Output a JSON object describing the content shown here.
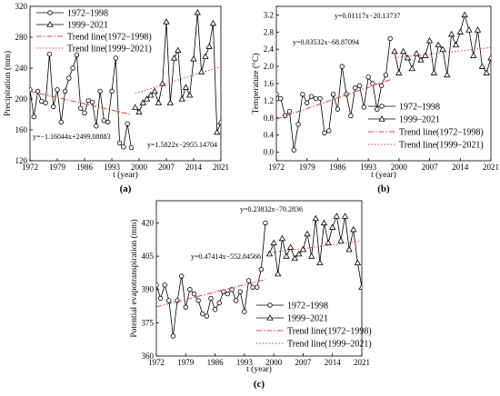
{
  "chart_data": [
    {
      "type": "line",
      "panel_label": "(a)",
      "xlabel": "t (year)",
      "ylabel": "Precipitation (mm)",
      "xlim": [
        1972,
        2021
      ],
      "ylim": [
        120,
        320
      ],
      "xticks": [
        1972,
        1979,
        1986,
        1993,
        2000,
        2007,
        2014,
        2021
      ],
      "yticks": [
        120,
        160,
        200,
        240,
        280,
        320
      ],
      "legend_position": "top-left",
      "series": [
        {
          "name": "1972–1998",
          "marker": "circle",
          "x": [
            1972,
            1973,
            1974,
            1975,
            1976,
            1977,
            1978,
            1979,
            1980,
            1981,
            1982,
            1983,
            1984,
            1985,
            1986,
            1987,
            1988,
            1989,
            1990,
            1991,
            1992,
            1993,
            1994,
            1995,
            1996,
            1997,
            1998
          ],
          "values": [
            212,
            177,
            210,
            197,
            195,
            258,
            190,
            212,
            170,
            210,
            227,
            240,
            257,
            188,
            182,
            198,
            196,
            165,
            210,
            172,
            170,
            210,
            253,
            143,
            138,
            168,
            137
          ]
        },
        {
          "name": "1999–2021",
          "marker": "triangle",
          "x": [
            1999,
            2000,
            2001,
            2002,
            2003,
            2004,
            2005,
            2006,
            2007,
            2008,
            2009,
            2010,
            2011,
            2012,
            2013,
            2014,
            2015,
            2016,
            2017,
            2018,
            2019,
            2020,
            2021
          ],
          "values": [
            189,
            183,
            195,
            200,
            205,
            210,
            195,
            220,
            300,
            195,
            253,
            263,
            200,
            215,
            205,
            252,
            312,
            235,
            255,
            268,
            298,
            157,
            170
          ]
        },
        {
          "name": "Trend line(1972–1998)",
          "style": "dash-dot",
          "color": "#e0403a",
          "x": [
            1972,
            1998
          ],
          "values": [
            210.0,
            179.8
          ]
        },
        {
          "name": "Trend line(1999–2021)",
          "style": "dotted",
          "color": "#e0403a",
          "x": [
            1999,
            2021
          ],
          "values": [
            207.2,
            242.0
          ]
        }
      ],
      "annotations": [
        "y=−1.16044x+2499.08883",
        "y=1.5822x−2955.14704"
      ]
    },
    {
      "type": "line",
      "panel_label": "(b)",
      "xlabel": "t (year)",
      "ylabel": "Temperature (°C)",
      "xlim": [
        1972,
        2021
      ],
      "ylim": [
        -0.2,
        3.4
      ],
      "xticks": [
        1972,
        1979,
        1986,
        1993,
        2000,
        2007,
        2014,
        2021
      ],
      "yticks": [
        0.0,
        0.4,
        0.8,
        1.2,
        1.6,
        2.0,
        2.4,
        2.8,
        3.2
      ],
      "legend_position": "center-right",
      "series": [
        {
          "name": "1972–1998",
          "marker": "circle",
          "x": [
            1972,
            1973,
            1974,
            1975,
            1976,
            1977,
            1978,
            1979,
            1980,
            1981,
            1982,
            1983,
            1984,
            1985,
            1986,
            1987,
            1988,
            1989,
            1990,
            1991,
            1992,
            1993,
            1994,
            1995,
            1996,
            1997,
            1998
          ],
          "values": [
            1.35,
            1.25,
            0.85,
            0.95,
            0.05,
            0.65,
            1.35,
            1.15,
            1.3,
            1.25,
            1.25,
            0.45,
            0.5,
            1.35,
            1.0,
            2.0,
            1.35,
            0.85,
            1.5,
            1.55,
            1.05,
            1.75,
            1.6,
            1.0,
            1.55,
            1.8,
            2.65
          ]
        },
        {
          "name": "1999–2021",
          "marker": "triangle",
          "x": [
            1999,
            2000,
            2001,
            2002,
            2003,
            2004,
            2005,
            2006,
            2007,
            2008,
            2009,
            2010,
            2011,
            2012,
            2013,
            2014,
            2015,
            2016,
            2017,
            2018,
            2019,
            2020,
            2021
          ],
          "values": [
            2.35,
            1.85,
            2.35,
            2.2,
            1.95,
            2.3,
            2.15,
            2.25,
            2.6,
            1.85,
            2.5,
            2.4,
            1.8,
            2.75,
            2.5,
            2.8,
            3.2,
            2.85,
            2.25,
            2.85,
            2.0,
            1.85,
            2.2
          ]
        },
        {
          "name": "Trend line(1972–1998)",
          "style": "dash-dot",
          "color": "#e0403a",
          "x": [
            1972,
            1998
          ],
          "values": [
            0.77,
            1.69
          ]
        },
        {
          "name": "Trend line(1999–2021)",
          "style": "dotted",
          "color": "#e0403a",
          "x": [
            1999,
            2021
          ],
          "values": [
            2.2,
            2.44
          ]
        }
      ],
      "annotations": [
        "y=0.03532x−68.87094",
        "y=0.01117x−20.13737"
      ]
    },
    {
      "type": "line",
      "panel_label": "(c)",
      "xlabel": "t (year)",
      "ylabel": "Potential evapotranspiration (mm)",
      "xlim": [
        1972,
        2021
      ],
      "ylim": [
        360,
        430
      ],
      "xticks": [
        1972,
        1979,
        1986,
        1993,
        2000,
        2007,
        2014,
        2021
      ],
      "yticks": [
        360,
        375,
        390,
        405,
        420
      ],
      "legend_position": "bottom-center",
      "series": [
        {
          "name": "1972–1998",
          "marker": "circle",
          "x": [
            1972,
            1973,
            1974,
            1975,
            1976,
            1977,
            1978,
            1979,
            1980,
            1981,
            1982,
            1983,
            1984,
            1985,
            1986,
            1987,
            1988,
            1989,
            1990,
            1991,
            1992,
            1993,
            1994,
            1995,
            1996,
            1997,
            1998
          ],
          "values": [
            392,
            386,
            392,
            385,
            369,
            385,
            396,
            382,
            390,
            388,
            385,
            379,
            378,
            386,
            381,
            384,
            389,
            388,
            390,
            385,
            389,
            380,
            394,
            391,
            391,
            399,
            420
          ]
        },
        {
          "name": "1999–2021",
          "marker": "triangle",
          "x": [
            1999,
            2000,
            2001,
            2002,
            2003,
            2004,
            2005,
            2006,
            2007,
            2008,
            2009,
            2010,
            2011,
            2012,
            2013,
            2014,
            2015,
            2016,
            2017,
            2018,
            2019,
            2020,
            2021
          ],
          "values": [
            406,
            411,
            397,
            413,
            405,
            409,
            404,
            406,
            408,
            415,
            405,
            422,
            402,
            420,
            411,
            418,
            423,
            412,
            423,
            408,
            417,
            402,
            391
          ]
        },
        {
          "name": "Trend line(1972–1998)",
          "style": "dash-dot",
          "color": "#e0403a",
          "x": [
            1972,
            1998
          ],
          "values": [
            382.2,
            394.5
          ]
        },
        {
          "name": "Trend line(1999–2021)",
          "style": "dotted",
          "color": "#e0403a",
          "x": [
            1999,
            2021
          ],
          "values": [
            406.5,
            411.8
          ]
        }
      ],
      "annotations": [
        "y=0.23832x−70.2836",
        "y=0.47414x−552.84566"
      ]
    }
  ]
}
